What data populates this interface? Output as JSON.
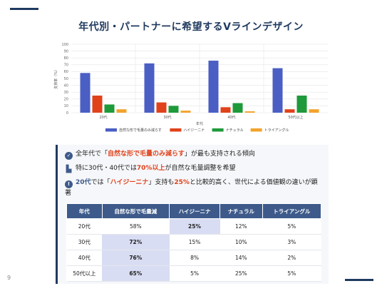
{
  "title": "年代別・パートナーに希望するVラインデザイン",
  "page_number": "9",
  "chart_data": {
    "type": "bar",
    "categories": [
      "20代",
      "30代",
      "40代",
      "50代以上"
    ],
    "series": [
      {
        "name": "自然な形で毛量のみ減らす",
        "color": "#4a5ec4",
        "values": [
          58,
          72,
          76,
          65
        ]
      },
      {
        "name": "ハイジーニナ",
        "color": "#e0421b",
        "values": [
          25,
          15,
          8,
          5
        ]
      },
      {
        "name": "ナチュラル",
        "color": "#1e9a3a",
        "values": [
          12,
          10,
          14,
          25
        ]
      },
      {
        "name": "トライアングル",
        "color": "#f2a32c",
        "values": [
          5,
          3,
          2,
          5
        ]
      }
    ],
    "xlabel": "年代",
    "ylabel": "支持率（%）",
    "ylim": [
      0,
      100
    ],
    "yticks": [
      "0",
      "10",
      "20",
      "30",
      "40",
      "50",
      "60",
      "70",
      "80",
      "90",
      "100"
    ],
    "grid": true,
    "legend": "bottom"
  },
  "insights": [
    {
      "icon": "check-circle-icon",
      "parts": [
        {
          "t": "全年代で「",
          "s": ""
        },
        {
          "t": "自然な形で毛量のみ減らす",
          "s": "red"
        },
        {
          "t": "」が最も支持される傾向",
          "s": ""
        }
      ]
    },
    {
      "icon": "bar-chart-icon",
      "parts": [
        {
          "t": "特に30代・40代では",
          "s": ""
        },
        {
          "t": "70%以上",
          "s": "red"
        },
        {
          "t": "が自然な毛量調整を希望",
          "s": ""
        }
      ]
    },
    {
      "icon": "exclamation-circle-icon",
      "parts": [
        {
          "t": "20代",
          "s": "blue"
        },
        {
          "t": "では「",
          "s": ""
        },
        {
          "t": "ハイジーニナ",
          "s": "red"
        },
        {
          "t": "」支持も",
          "s": ""
        },
        {
          "t": "25%",
          "s": "red"
        },
        {
          "t": "と比較的高く、世代による価値観の違いが顕著",
          "s": ""
        }
      ]
    }
  ],
  "table": {
    "headers": [
      "年代",
      "自然な形で毛量減",
      "ハイジーニナ",
      "ナチュラル",
      "トライアングル"
    ],
    "rows": [
      {
        "cells": [
          "20代",
          "58%",
          "25%",
          "12%",
          "5%"
        ],
        "highlight": [
          2
        ]
      },
      {
        "cells": [
          "30代",
          "72%",
          "15%",
          "10%",
          "3%"
        ],
        "highlight": [
          1
        ]
      },
      {
        "cells": [
          "40代",
          "76%",
          "8%",
          "14%",
          "2%"
        ],
        "highlight": [
          1
        ]
      },
      {
        "cells": [
          "50代以上",
          "65%",
          "5%",
          "25%",
          "5%"
        ],
        "highlight": [
          1
        ]
      }
    ]
  }
}
